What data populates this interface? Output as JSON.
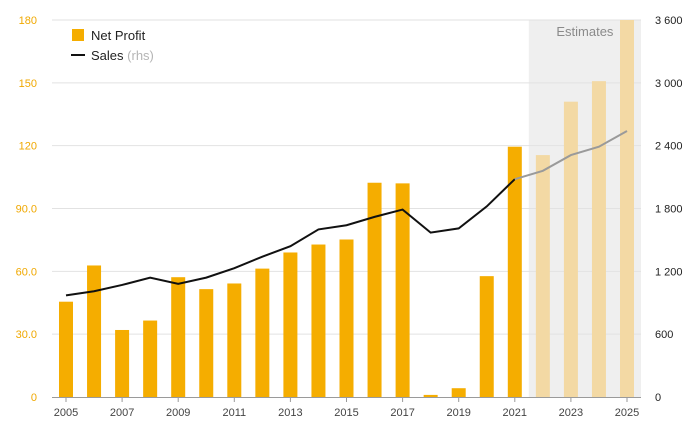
{
  "colors": {
    "bar_actual": "#f5ad00",
    "bar_estimate": "#f3d9a4",
    "line_actual": "#111111",
    "line_estimate": "#9a9a9a",
    "estimate_shade": "#efefef",
    "left_axis_text": "#f0a800"
  },
  "chart_data": {
    "type": "bar",
    "x": [
      2005,
      2006,
      2007,
      2008,
      2009,
      2010,
      2011,
      2012,
      2013,
      2014,
      2015,
      2016,
      2017,
      2018,
      2019,
      2020,
      2021,
      2022,
      2023,
      2024,
      2025
    ],
    "series": [
      {
        "name": "Net Profit",
        "axis": "left",
        "chart_type": "bar",
        "values": [
          45.5,
          62.8,
          32.0,
          36.5,
          57.2,
          51.5,
          54.2,
          61.3,
          69.0,
          72.8,
          75.2,
          102.3,
          102.0,
          1.0,
          4.2,
          57.7,
          119.5,
          115.5,
          141.0,
          150.8,
          180.0
        ]
      },
      {
        "name": "Sales",
        "name_suffix": "(rhs)",
        "axis": "right",
        "chart_type": "line",
        "values": [
          970,
          1010,
          1070,
          1140,
          1080,
          1140,
          1230,
          1340,
          1440,
          1600,
          1640,
          1720,
          1790,
          1570,
          1610,
          1820,
          2080,
          2160,
          2310,
          2390,
          2540
        ]
      }
    ],
    "estimates_from": 2022,
    "estimates_label": "Estimates",
    "left_axis": {
      "ylim": [
        0,
        180
      ],
      "ticks": [
        "0",
        "30.0",
        "60.0",
        "90.0",
        "120",
        "150",
        "180"
      ]
    },
    "right_axis": {
      "ylim": [
        0,
        3600
      ],
      "ticks": [
        "0",
        "600",
        "1 200",
        "1 800",
        "2 400",
        "3 000",
        "3 600"
      ]
    },
    "x_tick_labels": [
      "2005",
      "2007",
      "2009",
      "2011",
      "2013",
      "2015",
      "2017",
      "2019",
      "2021",
      "2023",
      "2025"
    ],
    "grid": true,
    "legend_placement": "top-left"
  }
}
